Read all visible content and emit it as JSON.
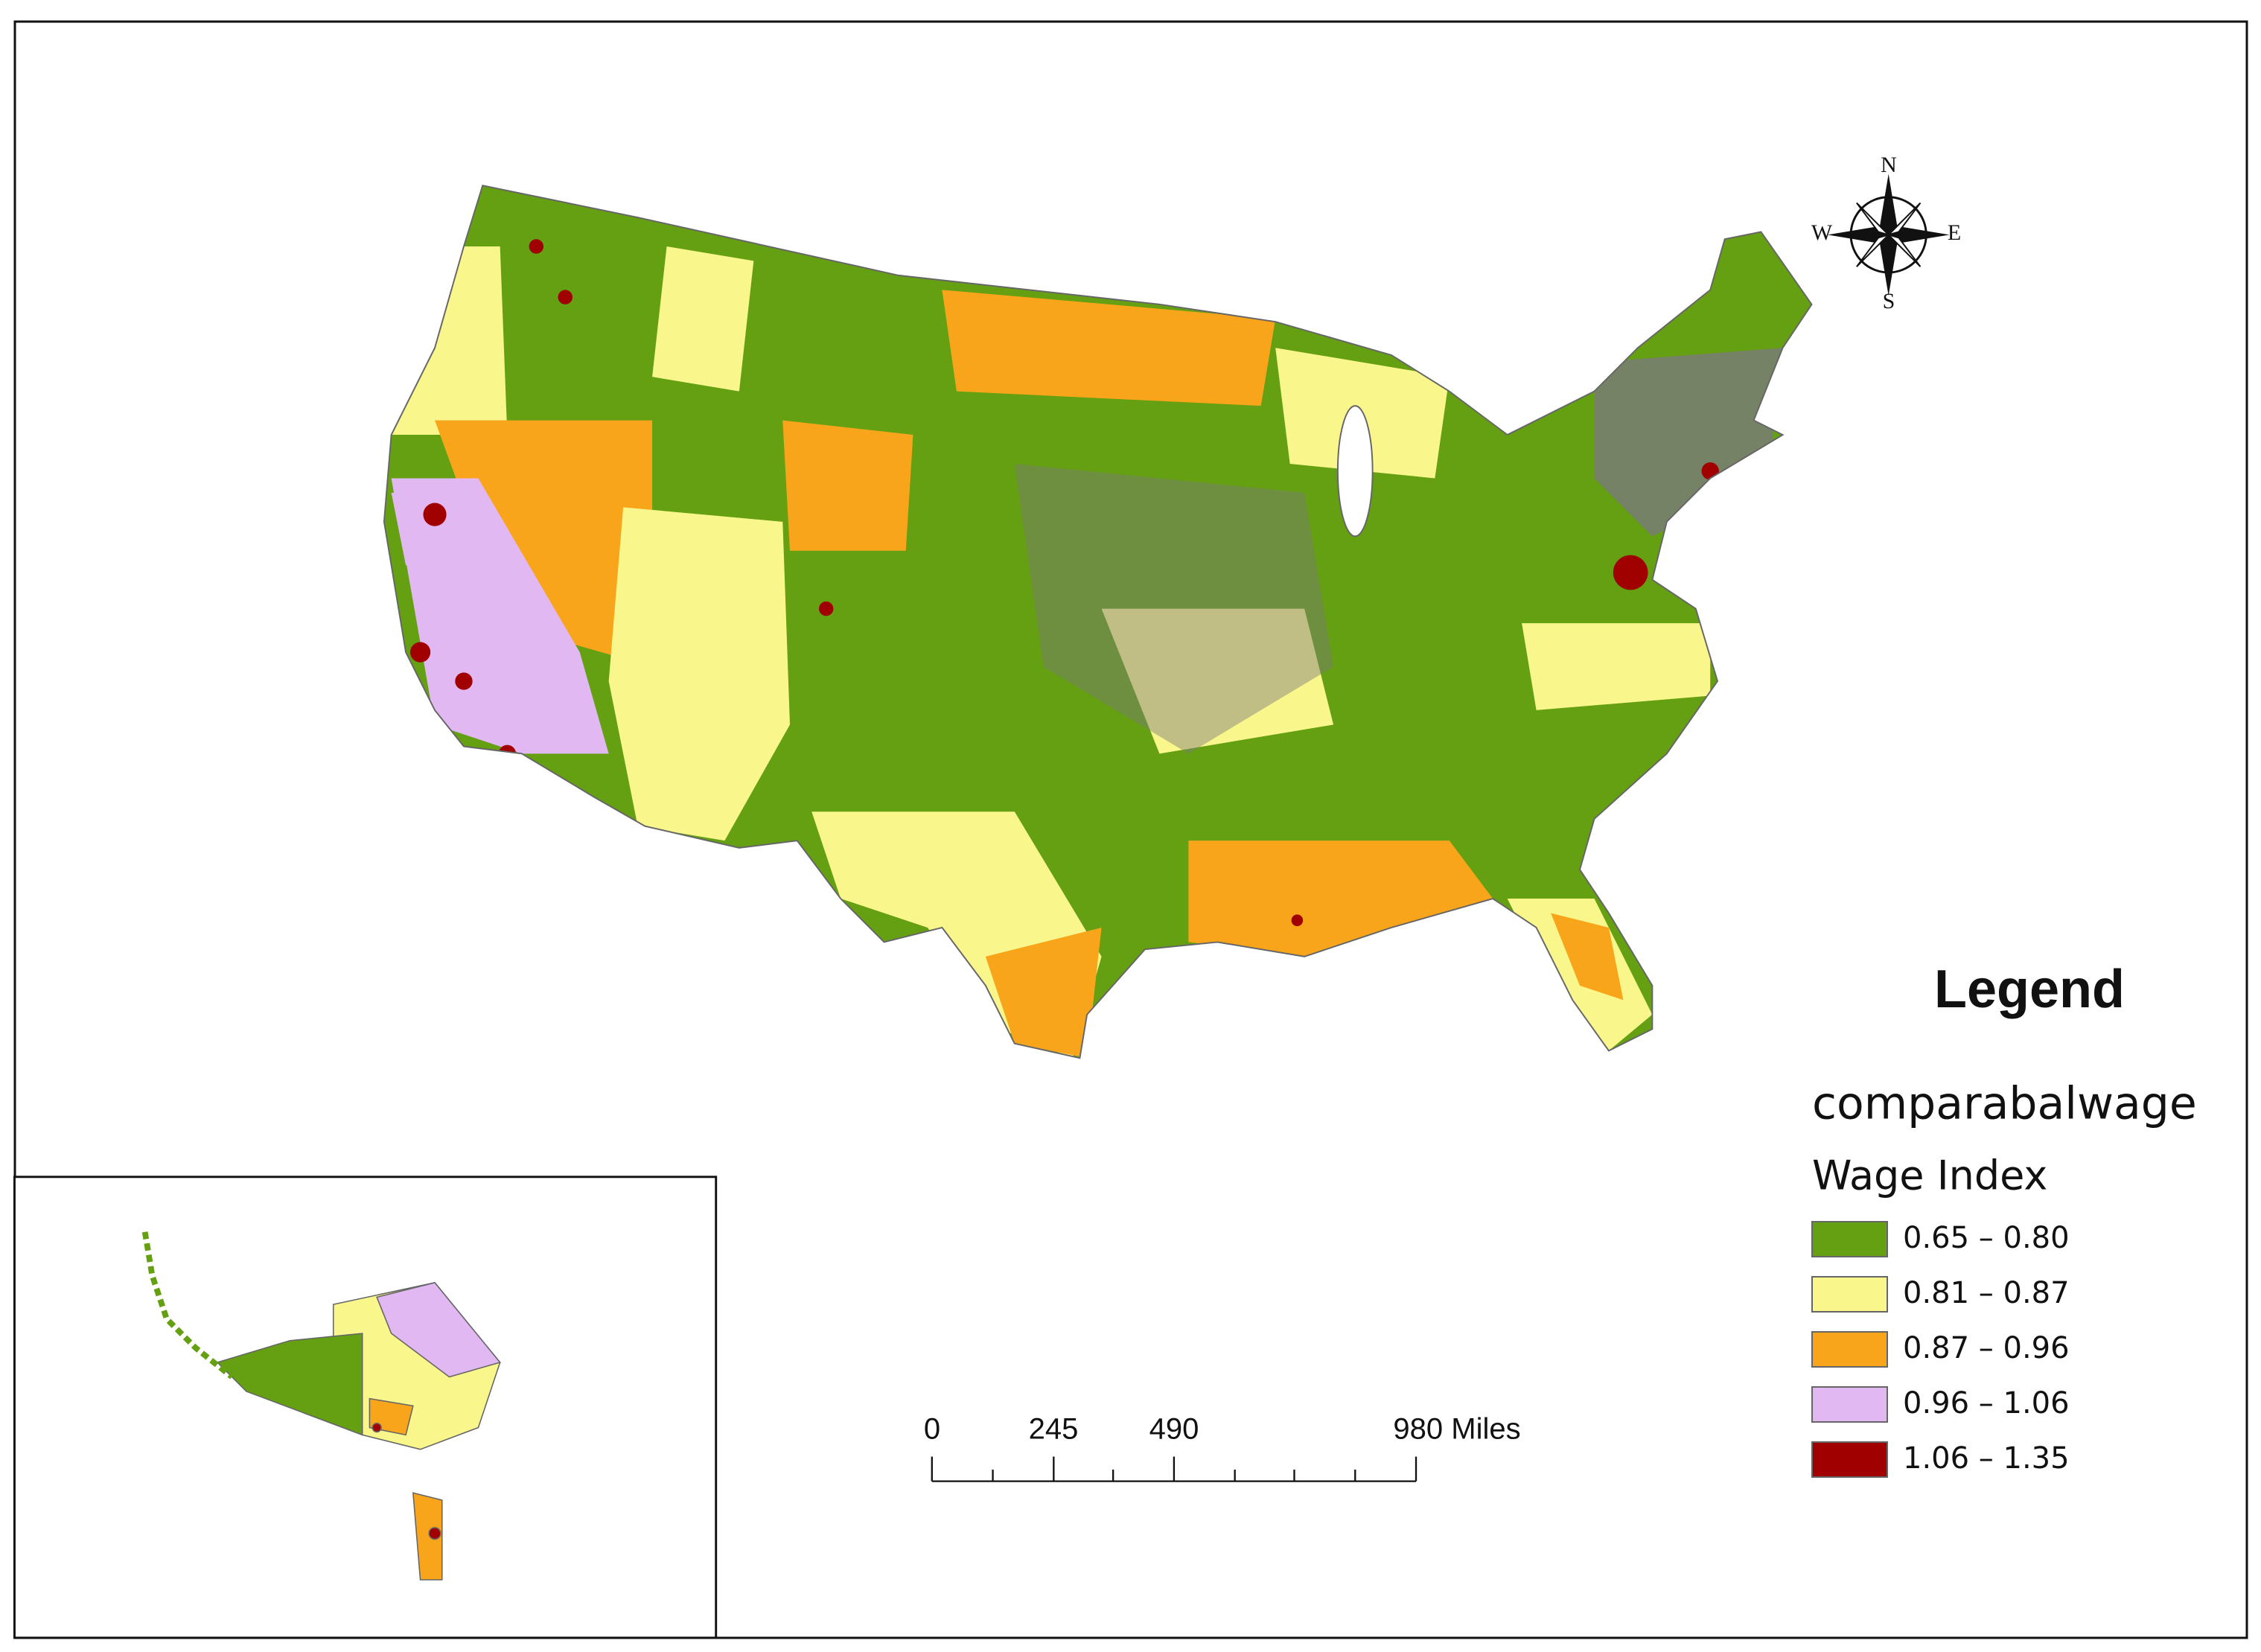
{
  "legend": {
    "title": "Legend",
    "layer": "comparabalwage",
    "field": "Wage Index",
    "classes": [
      {
        "label": "0.65 – 0.80",
        "color": "#64a012"
      },
      {
        "label": "0.81 – 0.87",
        "color": "#f9f68c"
      },
      {
        "label": "0.87 – 0.96",
        "color": "#f8a51b"
      },
      {
        "label": "0.96 – 1.06",
        "color": "#e2b8f2"
      },
      {
        "label": "1.06 – 1.35",
        "color": "#a10000"
      }
    ]
  },
  "scale_bar": {
    "labels": [
      "0",
      "245",
      "490",
      "980 Miles"
    ]
  },
  "compass": {
    "north": "N",
    "south": "S",
    "east": "E",
    "west": "W"
  }
}
